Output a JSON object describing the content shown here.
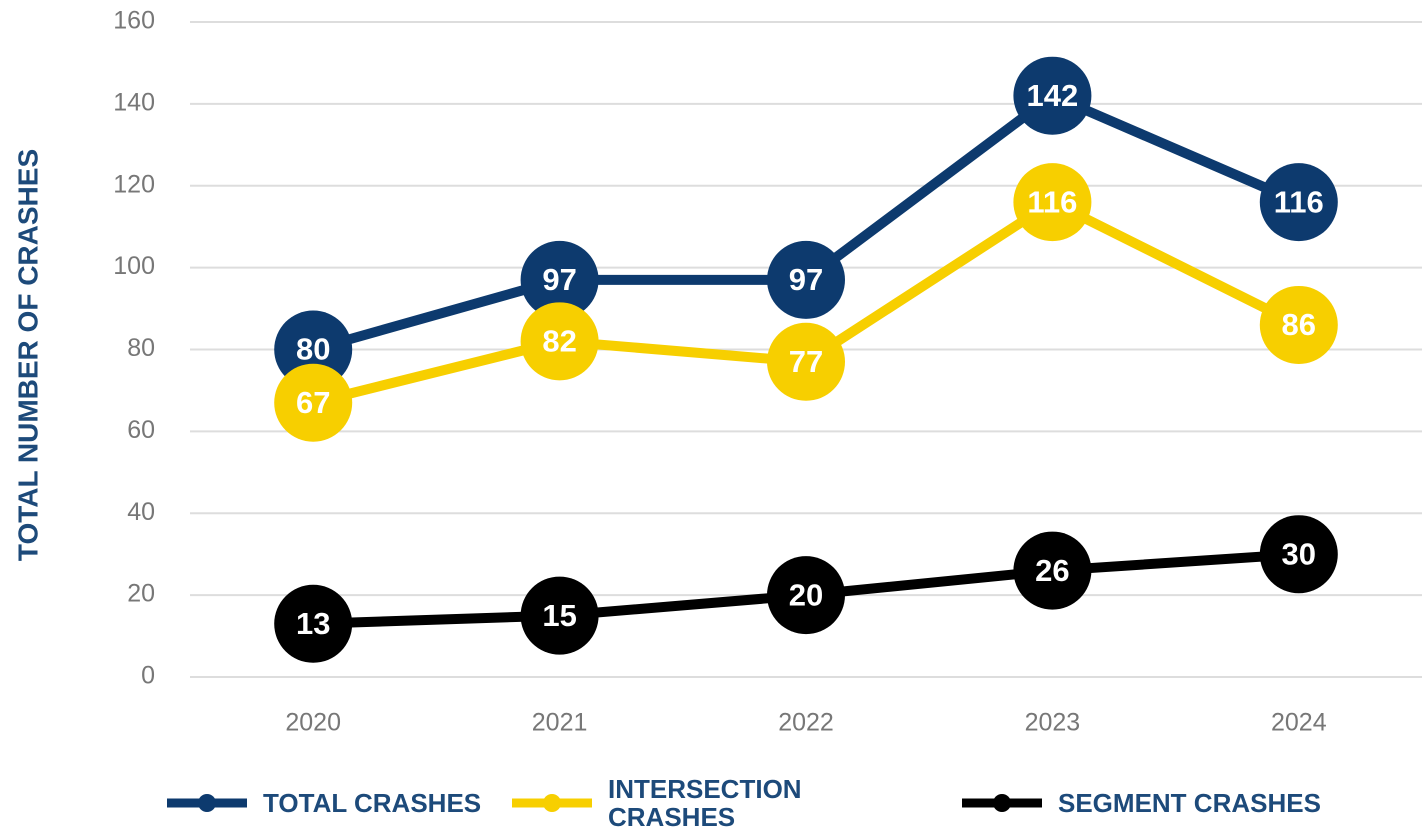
{
  "chart_data": {
    "type": "line",
    "y_axis_label": "TOTAL NUMBER OF CRASHES",
    "categories": [
      "2020",
      "2021",
      "2022",
      "2023",
      "2024"
    ],
    "series": [
      {
        "name": "TOTAL CRASHES",
        "color": "#0d3a6e",
        "values": [
          80,
          97,
          97,
          142,
          116
        ]
      },
      {
        "name": "INTERSECTION CRASHES",
        "color": "#f7cf00",
        "values": [
          67,
          82,
          77,
          116,
          86
        ]
      },
      {
        "name": "SEGMENT CRASHES",
        "color": "#000000",
        "values": [
          13,
          15,
          20,
          26,
          30
        ]
      }
    ],
    "ylim": [
      0,
      160
    ],
    "yticks": [
      0,
      20,
      40,
      60,
      80,
      100,
      120,
      140,
      160
    ],
    "grid": true,
    "legend": "bottom"
  }
}
